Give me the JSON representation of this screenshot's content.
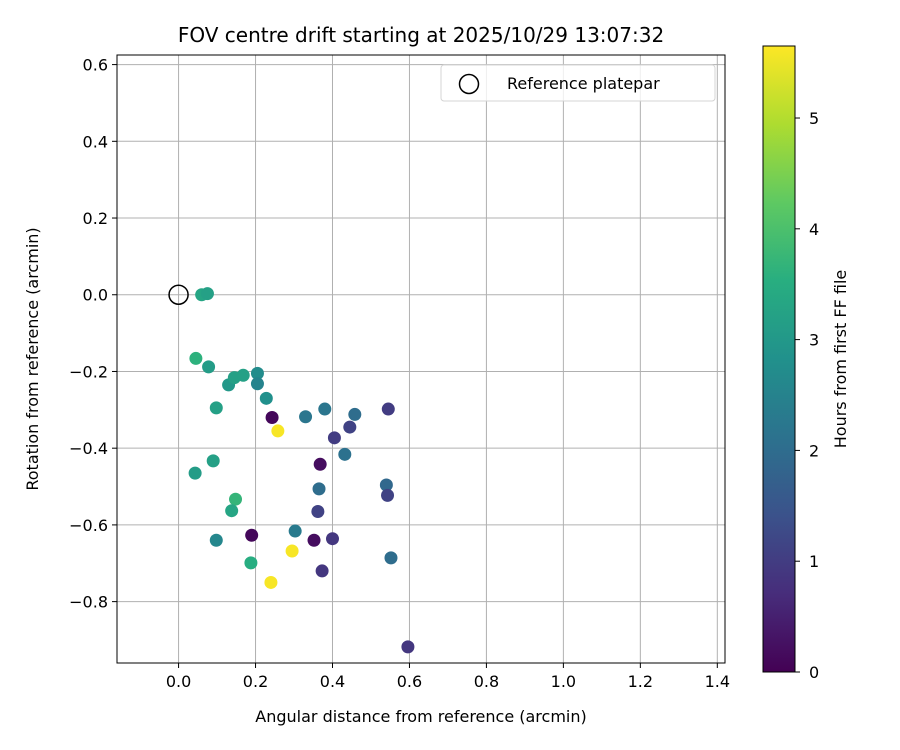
{
  "chart_data": {
    "type": "scatter",
    "title": "FOV centre drift starting at 2025/10/29 13:07:32",
    "xlabel": "Angular distance from reference (arcmin)",
    "ylabel": "Rotation from reference (arcmin)",
    "xlim": [
      -0.16,
      1.42
    ],
    "ylim": [
      -0.96,
      0.625
    ],
    "xticks": [
      0.0,
      0.2,
      0.4,
      0.6,
      0.8,
      1.0,
      1.2,
      1.4
    ],
    "xtick_labels": [
      "0.0",
      "0.2",
      "0.4",
      "0.6",
      "0.8",
      "1.0",
      "1.2",
      "1.4"
    ],
    "yticks": [
      0.6,
      0.4,
      0.2,
      0.0,
      -0.2,
      -0.4,
      -0.6,
      -0.8
    ],
    "ytick_labels": [
      "0.6",
      "0.4",
      "0.2",
      "0.0",
      "−0.2",
      "−0.4",
      "−0.6",
      "−0.8"
    ],
    "grid": true,
    "legend": {
      "position": "top-right",
      "entries": [
        "Reference platepar"
      ]
    },
    "reference_point": {
      "x": 0.0,
      "y": 0.0,
      "label": "Reference platepar"
    },
    "colorbar": {
      "label": "Hours from first FF file",
      "min": 0,
      "max": 5.65,
      "colormap": "viridis",
      "ticks": [
        0,
        1,
        2,
        3,
        4,
        5
      ],
      "tick_labels": [
        "0",
        "1",
        "2",
        "3",
        "4",
        "5"
      ]
    },
    "points": [
      {
        "x": 0.06,
        "y": 0.0,
        "h": 3.3
      },
      {
        "x": 0.075,
        "y": 0.003,
        "h": 3.2
      },
      {
        "x": 0.045,
        "y": -0.166,
        "h": 3.6
      },
      {
        "x": 0.078,
        "y": -0.188,
        "h": 3.1
      },
      {
        "x": 0.13,
        "y": -0.235,
        "h": 3.0
      },
      {
        "x": 0.145,
        "y": -0.216,
        "h": 3.2
      },
      {
        "x": 0.168,
        "y": -0.21,
        "h": 3.2
      },
      {
        "x": 0.205,
        "y": -0.205,
        "h": 2.7
      },
      {
        "x": 0.205,
        "y": -0.232,
        "h": 2.5
      },
      {
        "x": 0.228,
        "y": -0.27,
        "h": 2.8
      },
      {
        "x": 0.098,
        "y": -0.295,
        "h": 3.2
      },
      {
        "x": 0.243,
        "y": -0.32,
        "h": 0.1
      },
      {
        "x": 0.258,
        "y": -0.355,
        "h": 5.6
      },
      {
        "x": 0.33,
        "y": -0.318,
        "h": 2.2
      },
      {
        "x": 0.38,
        "y": -0.298,
        "h": 2.2
      },
      {
        "x": 0.458,
        "y": -0.312,
        "h": 2.0
      },
      {
        "x": 0.545,
        "y": -0.298,
        "h": 1.0
      },
      {
        "x": 0.445,
        "y": -0.345,
        "h": 1.1
      },
      {
        "x": 0.405,
        "y": -0.373,
        "h": 1.0
      },
      {
        "x": 0.432,
        "y": -0.416,
        "h": 2.1
      },
      {
        "x": 0.368,
        "y": -0.442,
        "h": 0.2
      },
      {
        "x": 0.043,
        "y": -0.465,
        "h": 3.1
      },
      {
        "x": 0.09,
        "y": -0.433,
        "h": 3.2
      },
      {
        "x": 0.365,
        "y": -0.506,
        "h": 2.0
      },
      {
        "x": 0.54,
        "y": -0.496,
        "h": 1.9
      },
      {
        "x": 0.543,
        "y": -0.523,
        "h": 1.1
      },
      {
        "x": 0.148,
        "y": -0.533,
        "h": 3.7
      },
      {
        "x": 0.138,
        "y": -0.563,
        "h": 3.3
      },
      {
        "x": 0.362,
        "y": -0.565,
        "h": 1.1
      },
      {
        "x": 0.303,
        "y": -0.616,
        "h": 2.3
      },
      {
        "x": 0.19,
        "y": -0.627,
        "h": 0.1
      },
      {
        "x": 0.098,
        "y": -0.64,
        "h": 2.6
      },
      {
        "x": 0.352,
        "y": -0.64,
        "h": 0.2
      },
      {
        "x": 0.4,
        "y": -0.636,
        "h": 0.9
      },
      {
        "x": 0.295,
        "y": -0.668,
        "h": 5.6
      },
      {
        "x": 0.552,
        "y": -0.686,
        "h": 2.0
      },
      {
        "x": 0.188,
        "y": -0.699,
        "h": 3.5
      },
      {
        "x": 0.373,
        "y": -0.72,
        "h": 0.9
      },
      {
        "x": 0.24,
        "y": -0.75,
        "h": 5.6
      },
      {
        "x": 0.596,
        "y": -0.918,
        "h": 0.9
      }
    ]
  }
}
